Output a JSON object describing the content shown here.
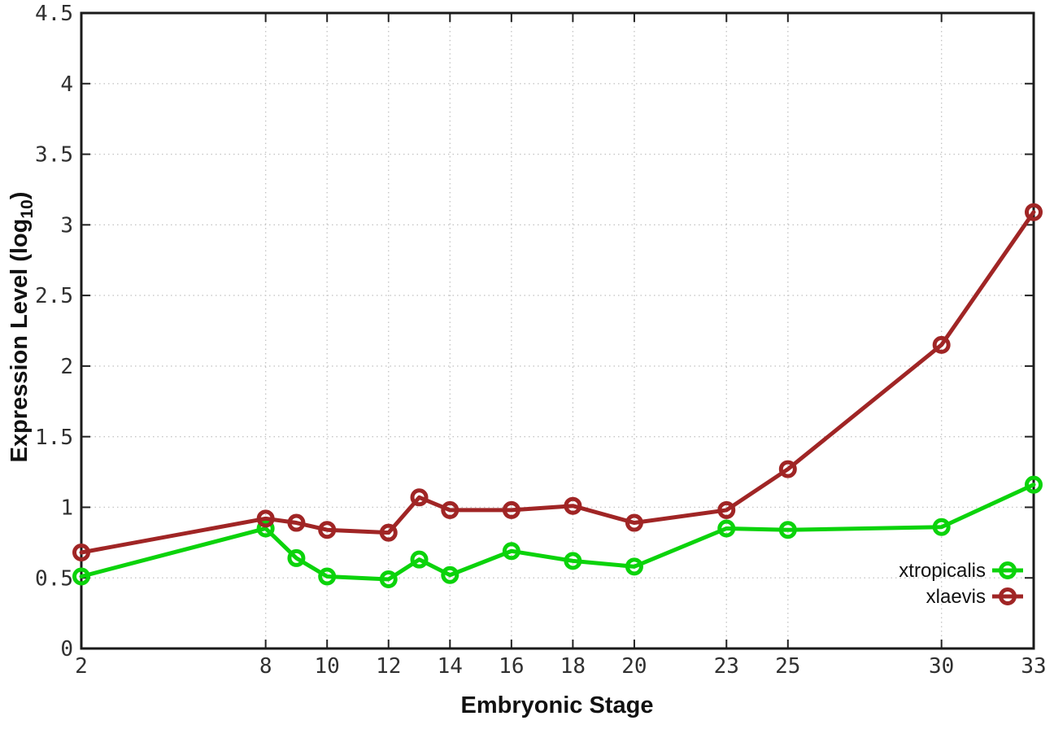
{
  "figure": {
    "background": "#ffffff",
    "border_color": "#1a1a1a",
    "grid_color": "#c6c6c6",
    "tick_color": "#222222",
    "tick_label_color": "#303030"
  },
  "chart_data": {
    "type": "line",
    "title": "",
    "xlabel": "Embryonic Stage",
    "ylabel_main": "Expression Level (log",
    "ylabel_sub": "10",
    "ylabel_close": ")",
    "xlim": [
      2,
      33
    ],
    "ylim": [
      0,
      4.5
    ],
    "grid": true,
    "legend_position": "inside-bottom-right",
    "x": [
      2,
      8,
      9,
      10,
      12,
      13,
      14,
      16,
      18,
      20,
      23,
      25,
      30,
      33
    ],
    "xticks": [
      2,
      8,
      10,
      12,
      14,
      16,
      18,
      20,
      23,
      25,
      30,
      33
    ],
    "xtick_labels": [
      "2",
      "8",
      "10",
      "12",
      "14",
      "16",
      "18",
      "20",
      "23",
      "25",
      "30",
      "33"
    ],
    "yticks": [
      0,
      0.5,
      1,
      1.5,
      2,
      2.5,
      3,
      3.5,
      4,
      4.5
    ],
    "ytick_labels": [
      "0",
      "0.5",
      "1",
      "1.5",
      "2",
      "2.5",
      "3",
      "3.5",
      "4",
      "4.5"
    ],
    "series": [
      {
        "name": "xtropicalis",
        "color": "#0bd30b",
        "marker": "open-circle",
        "values": [
          0.51,
          0.85,
          0.64,
          0.51,
          0.49,
          0.63,
          0.52,
          0.69,
          0.62,
          0.58,
          0.85,
          0.84,
          0.86,
          1.16
        ]
      },
      {
        "name": "xlaevis",
        "color": "#a02525",
        "marker": "open-circle",
        "values": [
          0.68,
          0.92,
          0.89,
          0.84,
          0.82,
          1.07,
          0.98,
          0.98,
          1.01,
          0.89,
          0.98,
          1.27,
          2.15,
          3.09
        ]
      }
    ]
  }
}
